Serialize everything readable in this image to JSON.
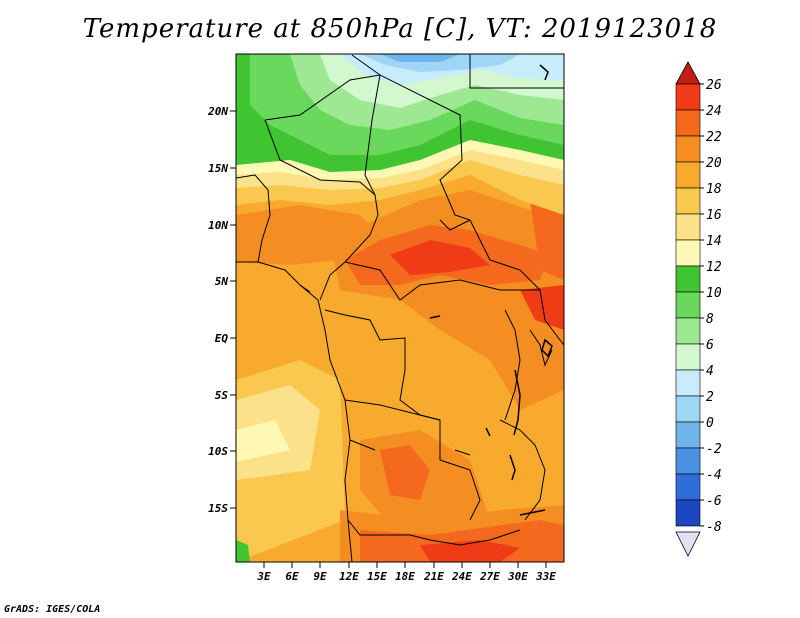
{
  "title": "Temperature at 850hPa [C], VT: 2019123018",
  "footer": "GrADS: IGES/COLA",
  "map": {
    "region": "Central and southern Africa",
    "lat_labels": [
      "20N",
      "15N",
      "10N",
      "5N",
      "EQ",
      "5S",
      "10S",
      "15S"
    ],
    "lon_labels": [
      "3E",
      "6E",
      "9E",
      "12E",
      "15E",
      "18E",
      "21E",
      "24E",
      "27E",
      "30E",
      "33E"
    ]
  },
  "colorbar": {
    "labels": [
      "26",
      "24",
      "22",
      "20",
      "18",
      "16",
      "14",
      "12",
      "10",
      "8",
      "6",
      "4",
      "2",
      "0",
      "-2",
      "-4",
      "-6",
      "-8"
    ],
    "colors": [
      "#f03c16",
      "#f5691e",
      "#f58e22",
      "#f7aa2e",
      "#fac84f",
      "#fbe28a",
      "#fef8b4",
      "#40c432",
      "#6ad85c",
      "#9ee894",
      "#d3f7cf",
      "#c7ecfb",
      "#a0d6f5",
      "#6fb4eb",
      "#4b91e2",
      "#2f6dd9",
      "#1e46c4",
      "#101f8c"
    ],
    "top_arrow_color": "#c81e12",
    "bottom_arrow_color": "#e4e0f5"
  },
  "palette": {
    "c26": "#f03c16",
    "c24": "#f5691e",
    "c22": "#f58e22",
    "c20": "#f7aa2e",
    "c18": "#fac84f",
    "c16": "#fbe28a",
    "c14": "#fef8b4",
    "c12": "#40c432",
    "c10": "#6ad85c",
    "c8": "#9ee894",
    "c6": "#d3f7cf",
    "c4": "#c7ecfb",
    "c2": "#a0d6f5",
    "c0": "#6fb4eb",
    "cm2": "#4b91e2"
  }
}
